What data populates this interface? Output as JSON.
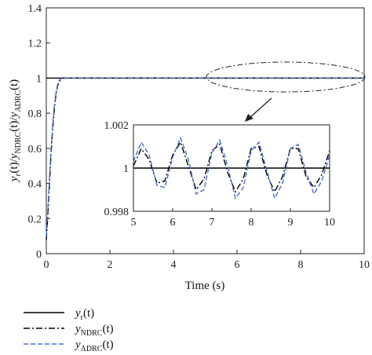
{
  "chart_data": [
    {
      "type": "line",
      "xlabel": "Time (s)",
      "ylabel": "y_r(t)/y_NDRC(t)/y_ADRC(t)",
      "xlim": [
        0,
        10
      ],
      "ylim": [
        0,
        1.4
      ],
      "x_ticks": [
        "0",
        "2",
        "4",
        "6",
        "8",
        "10"
      ],
      "y_ticks": [
        "0",
        "0.2",
        "0.4",
        "0.6",
        "0.8",
        "1",
        "1.2",
        "1.4"
      ],
      "grid": false,
      "legend_placement": "below",
      "series": [
        {
          "name": "y_r(t)",
          "style": "solid",
          "color": "#000000",
          "x": [
            0,
            10
          ],
          "y": [
            1,
            1
          ]
        },
        {
          "name": "y_NDRC(t)",
          "style": "dashdot",
          "color": "#000000",
          "x": [
            0,
            0.05,
            0.1,
            0.15,
            0.2,
            0.25,
            0.3,
            0.35,
            0.4,
            0.45,
            0.5,
            0.6,
            1.0,
            10
          ],
          "y": [
            0.08,
            0.22,
            0.4,
            0.57,
            0.71,
            0.82,
            0.9,
            0.95,
            0.98,
            0.99,
            1.0,
            1.0,
            1.0,
            1.0
          ]
        },
        {
          "name": "y_ADRC(t)",
          "style": "dashed",
          "color": "#4a6bd0",
          "x": [
            0,
            0.05,
            0.1,
            0.15,
            0.2,
            0.25,
            0.3,
            0.35,
            0.4,
            0.45,
            0.5,
            0.6,
            1.0,
            10
          ],
          "y": [
            0.1,
            0.25,
            0.43,
            0.6,
            0.73,
            0.84,
            0.91,
            0.96,
            0.985,
            0.995,
            1.0,
            1.0,
            1.0,
            1.0
          ]
        }
      ]
    },
    {
      "type": "line",
      "role": "inset",
      "xlim": [
        5,
        10
      ],
      "ylim": [
        0.998,
        1.002
      ],
      "x_ticks": [
        "5",
        "6",
        "7",
        "8",
        "9",
        "10"
      ],
      "y_ticks": [
        "0.998",
        "1",
        "1.002"
      ],
      "series": [
        {
          "name": "y_r(t)",
          "style": "solid",
          "color": "#000000",
          "x": [
            5,
            10
          ],
          "y": [
            1,
            1
          ]
        },
        {
          "name": "y_NDRC(t)",
          "style": "dashdot",
          "color": "#000000",
          "x": [
            5.0,
            5.2,
            5.4,
            5.6,
            5.8,
            6.0,
            6.2,
            6.4,
            6.6,
            6.8,
            7.0,
            7.2,
            7.4,
            7.6,
            7.8,
            8.0,
            8.2,
            8.4,
            8.6,
            8.8,
            9.0,
            9.2,
            9.4,
            9.6,
            9.8,
            10.0
          ],
          "y": [
            1.0001,
            1.0009,
            1.0004,
            0.9993,
            0.9994,
            1.0006,
            1.0012,
            1.0001,
            0.999,
            0.9995,
            1.0008,
            1.0011,
            0.9998,
            0.9989,
            0.9995,
            1.0009,
            1.001,
            0.9997,
            0.9989,
            0.9996,
            1.0009,
            1.0009,
            0.9996,
            0.9991,
            0.9997,
            1.0008
          ]
        },
        {
          "name": "y_ADRC(t)",
          "style": "dashed",
          "color": "#4a6bd0",
          "x": [
            5.0,
            5.2,
            5.4,
            5.6,
            5.8,
            6.0,
            6.2,
            6.4,
            6.6,
            6.8,
            7.0,
            7.2,
            7.4,
            7.6,
            7.8,
            8.0,
            8.2,
            8.4,
            8.6,
            8.8,
            9.0,
            9.2,
            9.4,
            9.6,
            9.8,
            10.0
          ],
          "y": [
            1.0003,
            1.0012,
            1.0006,
            0.9992,
            0.9991,
            1.0005,
            1.0014,
            1.0004,
            0.9988,
            0.999,
            1.0007,
            1.0013,
            1.0001,
            0.9986,
            0.9991,
            1.0008,
            1.0012,
            0.9999,
            0.9986,
            0.9993,
            1.0009,
            1.0011,
            0.9998,
            0.9988,
            0.9994,
            1.0006
          ]
        }
      ]
    }
  ],
  "legend": [
    {
      "base": "y",
      "sub": "r",
      "arg": "(t)"
    },
    {
      "base": "y",
      "sub": "NDRC",
      "arg": "(t)"
    },
    {
      "base": "y",
      "sub": "ADRC",
      "arg": "(t)"
    }
  ]
}
